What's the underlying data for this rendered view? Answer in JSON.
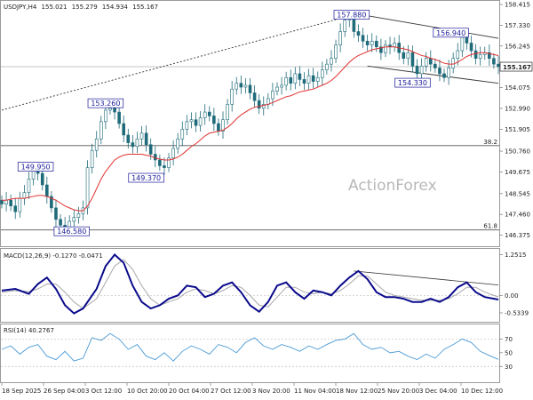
{
  "chart_data": [
    {
      "panel": "price",
      "type": "candlestick",
      "title": "USDJPY,H4",
      "ohlc": [
        "155.021",
        "155.279",
        "154.934",
        "155.167"
      ],
      "current_price": "155.167",
      "ylim": [
        145.8,
        158.6
      ],
      "yticks": [
        "158.415",
        "157.330",
        "156.245",
        "155.160",
        "154.075",
        "152.990",
        "151.905",
        "150.760",
        "149.675",
        "148.545",
        "147.460",
        "146.375"
      ],
      "ma_color": "#e03030",
      "candle_color": "#1f6b7a",
      "levels": [
        {
          "name": "38.2",
          "value": 151.05
        },
        {
          "name": "61.8",
          "value": 146.65
        }
      ],
      "price_labels": [
        {
          "text": "157.880",
          "x": 77.5,
          "y": 157.88
        },
        {
          "text": "156.940",
          "x": 99.5,
          "y": 156.94
        },
        {
          "text": "154.330",
          "x": 91,
          "y": 154.33
        },
        {
          "text": "153.260",
          "x": 23,
          "y": 153.26
        },
        {
          "text": "149.950",
          "x": 7.5,
          "y": 149.95
        },
        {
          "text": "149.370",
          "x": 32,
          "y": 149.37
        },
        {
          "text": "146.580",
          "x": 15.5,
          "y": 146.58
        }
      ],
      "trendlines": [
        {
          "from": [
            0,
            152.9
          ],
          "to": [
            78,
            157.88
          ],
          "style": "dotted"
        },
        {
          "from": [
            78,
            157.95
          ],
          "to": [
            110,
            156.65
          ],
          "style": "solid"
        },
        {
          "from": [
            81,
            155.2
          ],
          "to": [
            110,
            154.3
          ],
          "style": "solid"
        }
      ],
      "x_range": [
        0,
        110
      ],
      "close": [
        148.0,
        148.2,
        147.9,
        147.6,
        148.3,
        148.6,
        149.3,
        149.8,
        149.6,
        149.0,
        148.4,
        147.8,
        147.2,
        146.9,
        146.7,
        147.1,
        147.3,
        147.5,
        147.8,
        149.9,
        150.8,
        151.4,
        152.3,
        152.9,
        153.0,
        152.8,
        152.2,
        151.6,
        151.2,
        151.0,
        151.4,
        151.7,
        151.1,
        150.6,
        150.3,
        150.0,
        149.9,
        150.4,
        150.9,
        151.4,
        151.9,
        152.3,
        152.4,
        152.1,
        152.5,
        152.8,
        152.6,
        152.2,
        151.8,
        152.4,
        153.2,
        154.0,
        154.3,
        154.1,
        154.2,
        153.8,
        153.4,
        153.0,
        153.2,
        153.5,
        153.9,
        154.1,
        154.2,
        154.6,
        154.3,
        154.8,
        154.5,
        154.3,
        154.7,
        154.4,
        154.6,
        155.0,
        155.3,
        155.6,
        156.3,
        157.0,
        157.6,
        157.7,
        157.0,
        156.8,
        156.5,
        156.3,
        156.5,
        156.2,
        155.9,
        156.3,
        156.2,
        156.4,
        155.9,
        155.6,
        155.9,
        155.2,
        154.8,
        155.2,
        155.6,
        155.3,
        155.1,
        154.8,
        154.6,
        155.1,
        155.6,
        156.0,
        156.7,
        156.4,
        156.0,
        155.6,
        155.8,
        155.9,
        155.6,
        155.3,
        155.167
      ],
      "ma": [
        148.2,
        148.2,
        148.25,
        148.3,
        148.3,
        148.3,
        148.35,
        148.4,
        148.45,
        148.45,
        148.4,
        148.3,
        148.2,
        148.05,
        147.9,
        147.8,
        147.7,
        147.65,
        147.65,
        147.9,
        148.3,
        148.8,
        149.3,
        149.7,
        150.0,
        150.3,
        150.45,
        150.55,
        150.6,
        150.6,
        150.6,
        150.6,
        150.55,
        150.5,
        150.4,
        150.35,
        150.3,
        150.3,
        150.35,
        150.45,
        150.6,
        150.8,
        151.0,
        151.15,
        151.35,
        151.55,
        151.7,
        151.75,
        151.8,
        151.85,
        152.0,
        152.2,
        152.45,
        152.65,
        152.8,
        152.95,
        153.05,
        153.1,
        153.15,
        153.2,
        153.3,
        153.4,
        153.5,
        153.6,
        153.65,
        153.75,
        153.85,
        153.9,
        153.95,
        154.0,
        154.1,
        154.2,
        154.3,
        154.45,
        154.65,
        154.9,
        155.15,
        155.4,
        155.6,
        155.75,
        155.85,
        155.95,
        156.05,
        156.1,
        156.15,
        156.2,
        156.2,
        156.2,
        156.15,
        156.1,
        156.05,
        155.95,
        155.85,
        155.75,
        155.7,
        155.6,
        155.55,
        155.45,
        155.35,
        155.3,
        155.3,
        155.4,
        155.55,
        155.7,
        155.8,
        155.85,
        155.9,
        155.9,
        155.85,
        155.8,
        155.75
      ]
    },
    {
      "panel": "macd",
      "type": "line",
      "title": "MACD(12,26,9) -0.1270 -0.0471",
      "ylim": [
        -0.78,
        1.4
      ],
      "yticks": [
        "1.2515",
        "0.00",
        "-0.5339"
      ],
      "series": [
        {
          "role": "macd",
          "color": "#0a0a8c"
        },
        {
          "role": "signal",
          "color": "#a8a8a8"
        }
      ],
      "trendline": {
        "from": [
          78,
          0.75
        ],
        "to": [
          110,
          0.32
        ]
      },
      "x": [
        0,
        3,
        6,
        8,
        10,
        12,
        14,
        16,
        18,
        21,
        23,
        25,
        27,
        29,
        31,
        33,
        35,
        37,
        39,
        41,
        43,
        45,
        47,
        49,
        51,
        53,
        55,
        57,
        59,
        61,
        63,
        65,
        67,
        69,
        71,
        73,
        75,
        77,
        79,
        81,
        83,
        85,
        87,
        89,
        91,
        93,
        95,
        97,
        99,
        101,
        103,
        105,
        107,
        110
      ],
      "macd": [
        0.15,
        0.2,
        0.05,
        0.35,
        0.55,
        0.2,
        -0.3,
        -0.55,
        -0.4,
        0.2,
        0.9,
        1.25,
        1.0,
        0.3,
        -0.2,
        -0.4,
        -0.3,
        -0.1,
        0.0,
        0.3,
        0.25,
        -0.05,
        0.05,
        0.3,
        0.4,
        0.1,
        -0.3,
        -0.5,
        -0.2,
        0.3,
        0.4,
        0.1,
        -0.1,
        0.15,
        0.1,
        0.0,
        0.3,
        0.55,
        0.75,
        0.5,
        0.1,
        -0.05,
        -0.05,
        -0.1,
        -0.2,
        -0.2,
        -0.1,
        -0.2,
        -0.05,
        0.25,
        0.4,
        0.1,
        -0.05,
        -0.127
      ],
      "signal": [
        0.1,
        0.15,
        0.12,
        0.2,
        0.35,
        0.35,
        0.1,
        -0.2,
        -0.4,
        -0.1,
        0.4,
        0.9,
        1.1,
        0.8,
        0.3,
        -0.1,
        -0.3,
        -0.2,
        -0.1,
        0.1,
        0.2,
        0.15,
        0.05,
        0.15,
        0.3,
        0.25,
        0.0,
        -0.3,
        -0.35,
        -0.05,
        0.25,
        0.25,
        0.1,
        0.05,
        0.1,
        0.05,
        0.15,
        0.35,
        0.6,
        0.6,
        0.35,
        0.1,
        0.0,
        -0.05,
        -0.1,
        -0.15,
        -0.15,
        -0.15,
        -0.1,
        0.05,
        0.25,
        0.25,
        0.1,
        -0.047
      ]
    },
    {
      "panel": "rsi",
      "type": "line",
      "title": "RSI(14) 40.2767",
      "ylim": [
        7,
        90
      ],
      "yticks": [
        "70",
        "50",
        "30"
      ],
      "levels": [
        70,
        30
      ],
      "color": "#4a9ad4",
      "x": [
        0,
        2,
        4,
        6,
        8,
        10,
        12,
        14,
        16,
        18,
        20,
        22,
        24,
        26,
        28,
        30,
        32,
        34,
        36,
        38,
        40,
        42,
        44,
        46,
        48,
        50,
        52,
        54,
        56,
        58,
        60,
        62,
        64,
        66,
        68,
        70,
        72,
        74,
        76,
        78,
        80,
        82,
        84,
        86,
        88,
        90,
        92,
        94,
        96,
        98,
        100,
        102,
        104,
        106,
        108,
        110
      ],
      "y": [
        55,
        60,
        48,
        58,
        62,
        45,
        40,
        52,
        38,
        42,
        72,
        68,
        78,
        70,
        55,
        62,
        45,
        40,
        50,
        38,
        52,
        60,
        55,
        48,
        62,
        58,
        50,
        65,
        72,
        60,
        55,
        62,
        58,
        52,
        60,
        55,
        62,
        68,
        70,
        78,
        62,
        55,
        58,
        50,
        52,
        45,
        40,
        48,
        42,
        55,
        62,
        70,
        65,
        52,
        46,
        40.28
      ]
    }
  ],
  "watermark": "ActionForex",
  "x_axis_labels": [
    "18 Sep 2025",
    "26 Sep 04:00",
    "3 Oct 12:00",
    "10 Oct 20:00",
    "20 Oct 04:00",
    "27 Oct 12:00",
    "3 Nov 20:00",
    "11 Nov 04:00",
    "18 Nov 12:00",
    "25 Nov 20:00",
    "3 Dec 04:00",
    "10 Dec 12:00"
  ]
}
